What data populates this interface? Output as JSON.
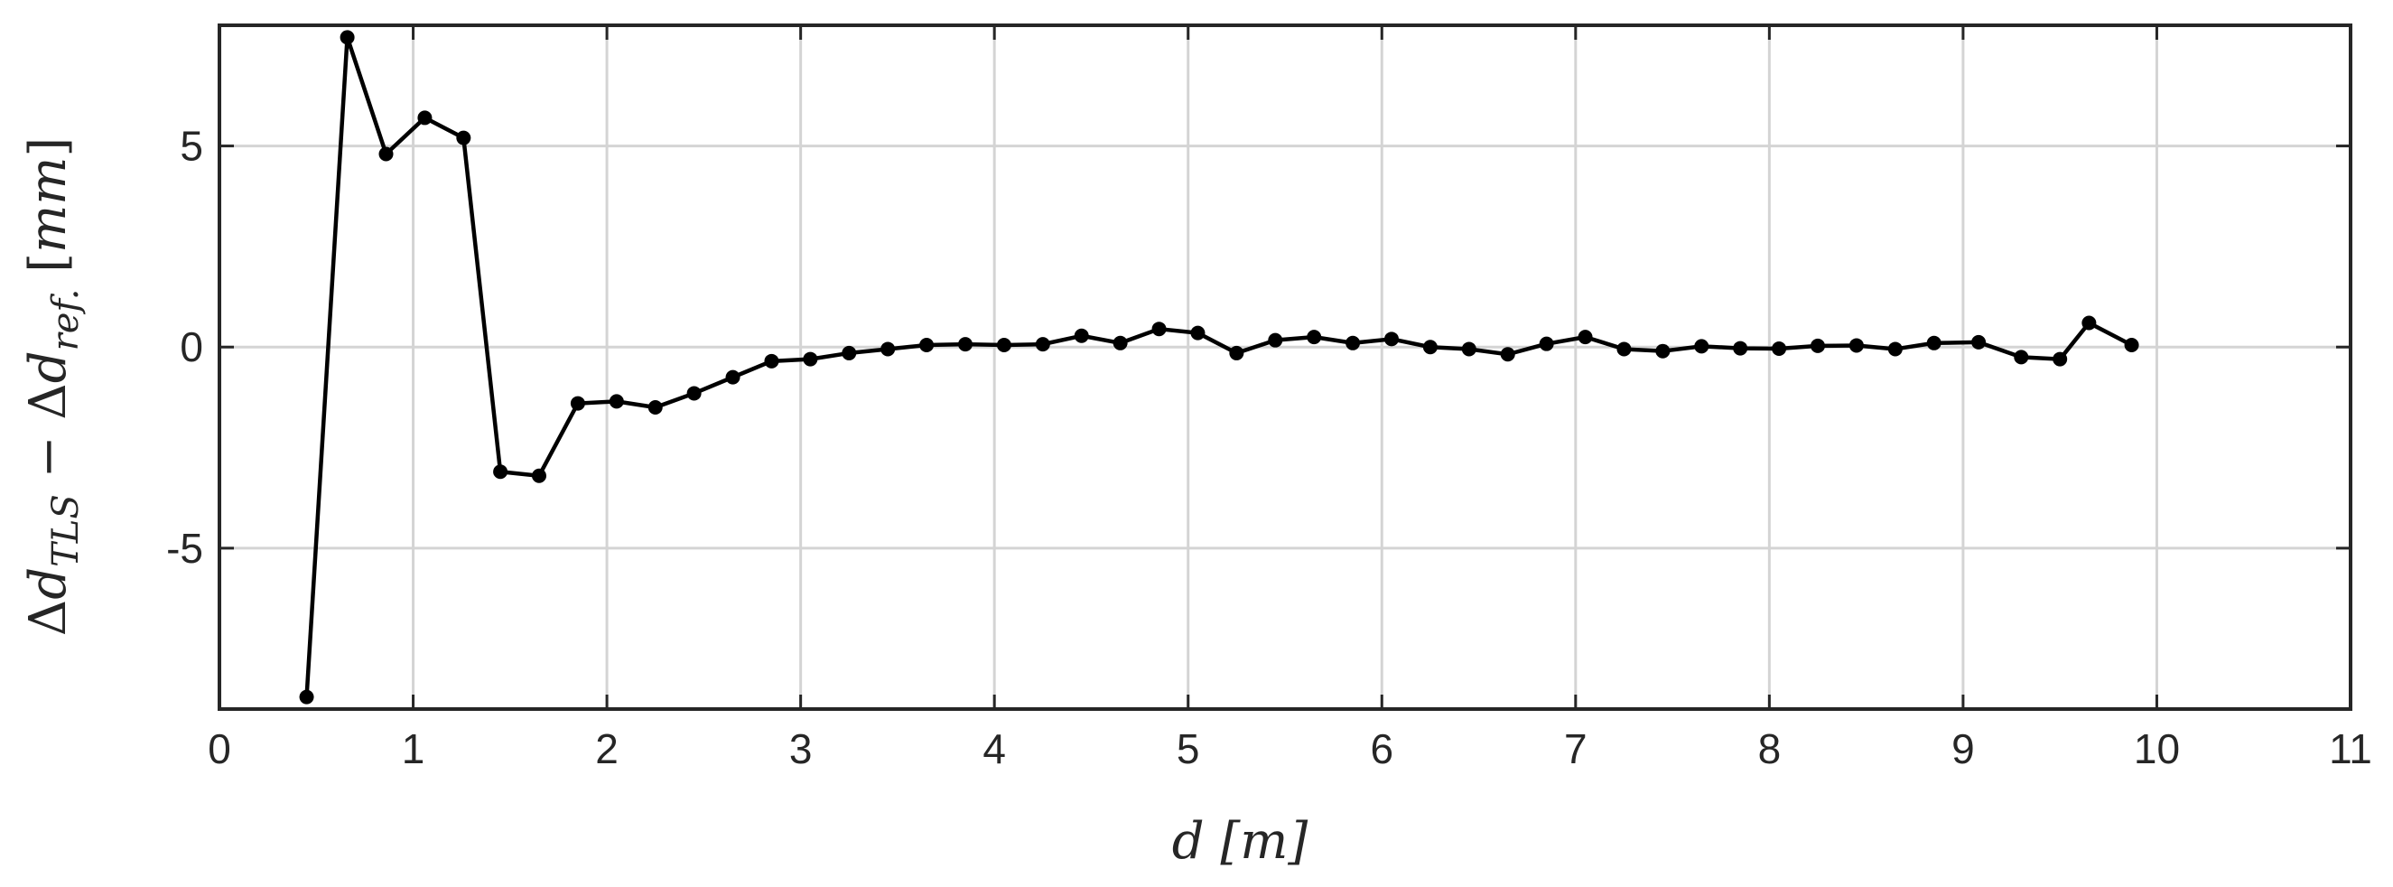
{
  "chart_data": {
    "type": "line",
    "title": "",
    "xlabel": "d [m]",
    "ylabel": "Δd_TLS − Δd_ref. [mm]",
    "xlim": [
      0,
      11
    ],
    "ylim": [
      -9,
      8
    ],
    "xticks": [
      "0",
      "1",
      "2",
      "3",
      "4",
      "5",
      "6",
      "7",
      "8",
      "9",
      "10",
      "11"
    ],
    "yticks": [
      "-5",
      "0",
      "5"
    ],
    "grid": true,
    "series": [
      {
        "color": "#000000",
        "marker": "circle",
        "points": [
          [
            0.45,
            -8.7
          ],
          [
            0.66,
            7.7
          ],
          [
            0.86,
            4.8
          ],
          [
            1.06,
            5.7
          ],
          [
            1.26,
            5.2
          ],
          [
            1.45,
            -3.1
          ],
          [
            1.65,
            -3.2
          ],
          [
            1.85,
            -1.4
          ],
          [
            2.05,
            -1.35
          ],
          [
            2.25,
            -1.5
          ],
          [
            2.45,
            -1.15
          ],
          [
            2.65,
            -0.75
          ],
          [
            2.85,
            -0.35
          ],
          [
            3.05,
            -0.3
          ],
          [
            3.25,
            -0.15
          ],
          [
            3.45,
            -0.05
          ],
          [
            3.65,
            0.05
          ],
          [
            3.85,
            0.07
          ],
          [
            4.05,
            0.05
          ],
          [
            4.25,
            0.07
          ],
          [
            4.45,
            0.28
          ],
          [
            4.65,
            0.1
          ],
          [
            4.85,
            0.45
          ],
          [
            5.05,
            0.35
          ],
          [
            5.25,
            -0.15
          ],
          [
            5.45,
            0.17
          ],
          [
            5.65,
            0.25
          ],
          [
            5.85,
            0.1
          ],
          [
            6.05,
            0.2
          ],
          [
            6.25,
            0.0
          ],
          [
            6.45,
            -0.05
          ],
          [
            6.65,
            -0.18
          ],
          [
            6.85,
            0.08
          ],
          [
            7.05,
            0.25
          ],
          [
            7.25,
            -0.05
          ],
          [
            7.45,
            -0.1
          ],
          [
            7.65,
            0.02
          ],
          [
            7.85,
            -0.03
          ],
          [
            8.05,
            -0.04
          ],
          [
            8.25,
            0.03
          ],
          [
            8.45,
            0.04
          ],
          [
            8.65,
            -0.05
          ],
          [
            8.85,
            0.1
          ],
          [
            9.08,
            0.12
          ],
          [
            9.3,
            -0.25
          ],
          [
            9.5,
            -0.3
          ],
          [
            9.65,
            0.6
          ],
          [
            9.87,
            0.05
          ]
        ]
      }
    ]
  }
}
